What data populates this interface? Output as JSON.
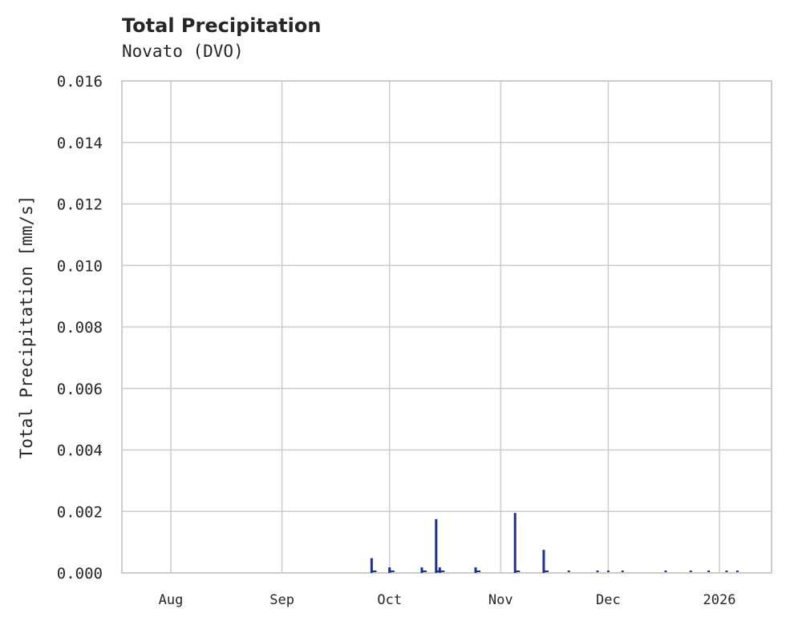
{
  "header": {
    "title": "Total Precipitation",
    "subtitle": "Novato (DVO)"
  },
  "colors": {
    "series": "#1f2f8a",
    "grid": "#cccccc",
    "text": "#262626"
  },
  "chart_data": {
    "type": "line",
    "title": "Total Precipitation",
    "subtitle": "Novato (DVO)",
    "xlabel": "",
    "ylabel": "Total Precipitation [mm/s]",
    "ylim": [
      0,
      0.016
    ],
    "yticks": [
      "0.000",
      "0.002",
      "0.004",
      "0.006",
      "0.008",
      "0.010",
      "0.012",
      "0.014",
      "0.016"
    ],
    "xticks": [
      "Aug",
      "Sep",
      "Oct",
      "Nov",
      "Dec",
      "2026"
    ],
    "grid": true,
    "legend": null,
    "series": [
      {
        "name": "Total Precipitation",
        "points": [
          {
            "date": "2025-09-26",
            "value": 0.00048
          },
          {
            "date": "2025-09-27",
            "value": 5e-05
          },
          {
            "date": "2025-10-01",
            "value": 0.00018
          },
          {
            "date": "2025-10-02",
            "value": 5e-05
          },
          {
            "date": "2025-10-10",
            "value": 0.00018
          },
          {
            "date": "2025-10-14",
            "value": 0.00175
          },
          {
            "date": "2025-10-15",
            "value": 0.00018
          },
          {
            "date": "2025-10-25",
            "value": 0.00018
          },
          {
            "date": "2025-10-26",
            "value": 5e-05
          },
          {
            "date": "2025-11-05",
            "value": 0.00195
          },
          {
            "date": "2025-11-06",
            "value": 5e-05
          },
          {
            "date": "2025-11-13",
            "value": 0.00075
          },
          {
            "date": "2025-11-14",
            "value": 5e-05
          },
          {
            "date": "2025-11-20",
            "value": 5e-05
          },
          {
            "date": "2025-11-28",
            "value": 5e-05
          },
          {
            "date": "2025-12-01",
            "value": 5e-05
          },
          {
            "date": "2025-12-05",
            "value": 5e-05
          },
          {
            "date": "2025-12-17",
            "value": 5e-05
          },
          {
            "date": "2025-12-24",
            "value": 5e-05
          },
          {
            "date": "2025-12-29",
            "value": 5e-05
          },
          {
            "date": "2026-01-03",
            "value": 5e-05
          },
          {
            "date": "2026-01-06",
            "value": 5e-05
          }
        ]
      }
    ]
  }
}
